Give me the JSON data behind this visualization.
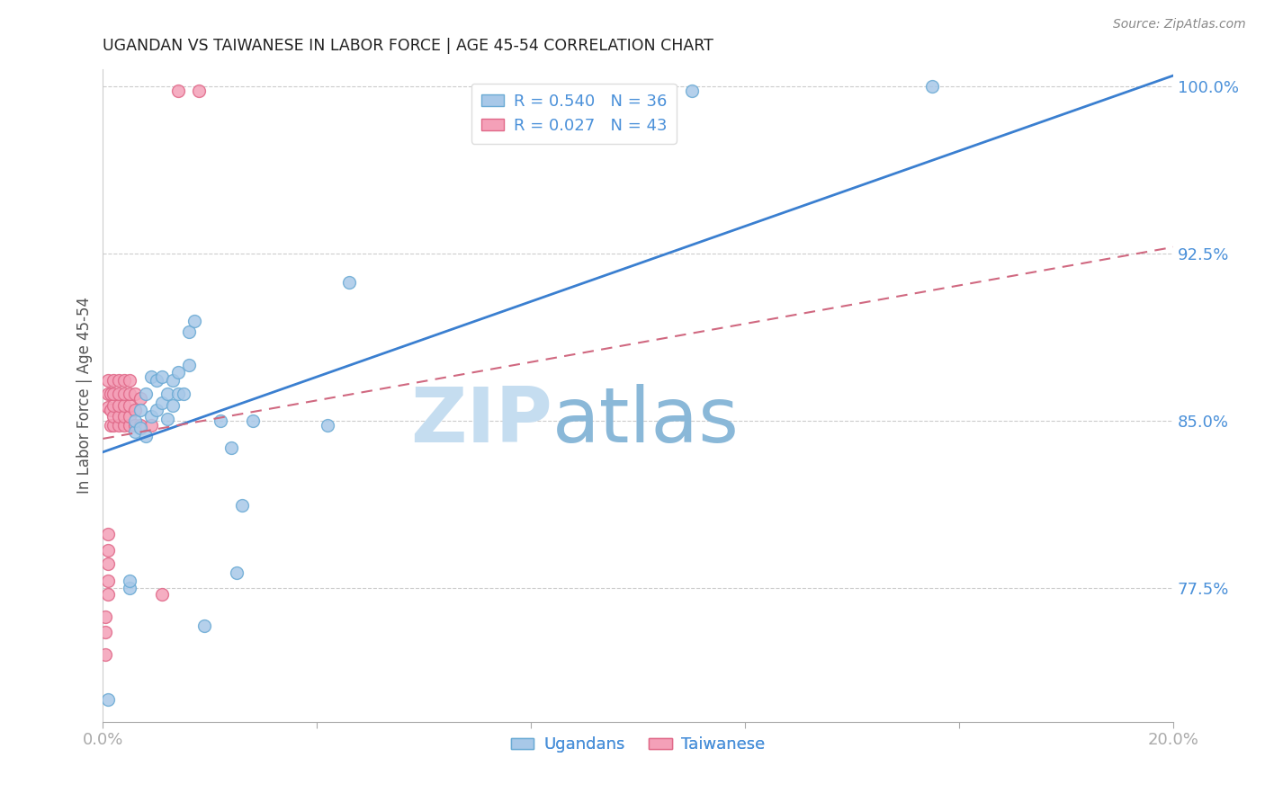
{
  "title": "UGANDAN VS TAIWANESE IN LABOR FORCE | AGE 45-54 CORRELATION CHART",
  "source": "Source: ZipAtlas.com",
  "ylabel": "In Labor Force | Age 45-54",
  "xlim": [
    0.0,
    0.2
  ],
  "ylim": [
    0.715,
    1.008
  ],
  "yticks": [
    0.775,
    0.85,
    0.925,
    1.0
  ],
  "yticklabels": [
    "77.5%",
    "85.0%",
    "92.5%",
    "100.0%"
  ],
  "ugandan_color": "#a8c8e8",
  "taiwanese_color": "#f4a0b8",
  "ugandan_edge": "#6aaad4",
  "taiwanese_edge": "#e06888",
  "trend_ugandan_color": "#3a7fd0",
  "trend_taiwanese_color": "#d06880",
  "legend_ugandan": "R = 0.540   N = 36",
  "legend_taiwanese": "R = 0.027   N = 43",
  "legend_label_ugandan": "Ugandans",
  "legend_label_taiwanese": "Taiwanese",
  "watermark_zip": "ZIP",
  "watermark_atlas": "atlas",
  "watermark_color_zip": "#c5ddf0",
  "watermark_color_atlas": "#8ab8d8",
  "background_color": "#ffffff",
  "grid_color": "#cccccc",
  "title_color": "#222222",
  "axis_color": "#4a90d9",
  "marker_size": 100,
  "ugandan_x": [
    0.001,
    0.005,
    0.005,
    0.006,
    0.006,
    0.007,
    0.007,
    0.008,
    0.008,
    0.009,
    0.009,
    0.01,
    0.01,
    0.011,
    0.011,
    0.012,
    0.012,
    0.013,
    0.013,
    0.014,
    0.014,
    0.015,
    0.016,
    0.016,
    0.017,
    0.019,
    0.022,
    0.024,
    0.025,
    0.026,
    0.028,
    0.042,
    0.046,
    0.085,
    0.11,
    0.155
  ],
  "ugandan_y": [
    0.725,
    0.775,
    0.778,
    0.845,
    0.85,
    0.847,
    0.855,
    0.843,
    0.862,
    0.852,
    0.87,
    0.855,
    0.868,
    0.858,
    0.87,
    0.851,
    0.862,
    0.857,
    0.868,
    0.862,
    0.872,
    0.862,
    0.875,
    0.89,
    0.895,
    0.758,
    0.85,
    0.838,
    0.782,
    0.812,
    0.85,
    0.848,
    0.912,
    0.998,
    0.998,
    1.0
  ],
  "taiwanese_x": [
    0.0005,
    0.0005,
    0.0005,
    0.001,
    0.001,
    0.001,
    0.001,
    0.001,
    0.001,
    0.001,
    0.001,
    0.0015,
    0.0015,
    0.0015,
    0.002,
    0.002,
    0.002,
    0.002,
    0.002,
    0.003,
    0.003,
    0.003,
    0.003,
    0.003,
    0.004,
    0.004,
    0.004,
    0.004,
    0.004,
    0.005,
    0.005,
    0.005,
    0.005,
    0.005,
    0.006,
    0.006,
    0.006,
    0.007,
    0.007,
    0.009,
    0.011,
    0.014,
    0.018
  ],
  "taiwanese_y": [
    0.745,
    0.755,
    0.762,
    0.772,
    0.778,
    0.786,
    0.792,
    0.799,
    0.856,
    0.862,
    0.868,
    0.848,
    0.855,
    0.862,
    0.848,
    0.852,
    0.857,
    0.862,
    0.868,
    0.848,
    0.852,
    0.857,
    0.862,
    0.868,
    0.848,
    0.852,
    0.857,
    0.862,
    0.868,
    0.848,
    0.852,
    0.857,
    0.862,
    0.868,
    0.848,
    0.855,
    0.862,
    0.848,
    0.86,
    0.848,
    0.772,
    0.998,
    0.998
  ],
  "trend_ug_x0": 0.0,
  "trend_ug_y0": 0.836,
  "trend_ug_x1": 0.2,
  "trend_ug_y1": 1.005,
  "trend_tw_x0": 0.0,
  "trend_tw_y0": 0.842,
  "trend_tw_x1": 0.2,
  "trend_tw_y1": 0.928
}
